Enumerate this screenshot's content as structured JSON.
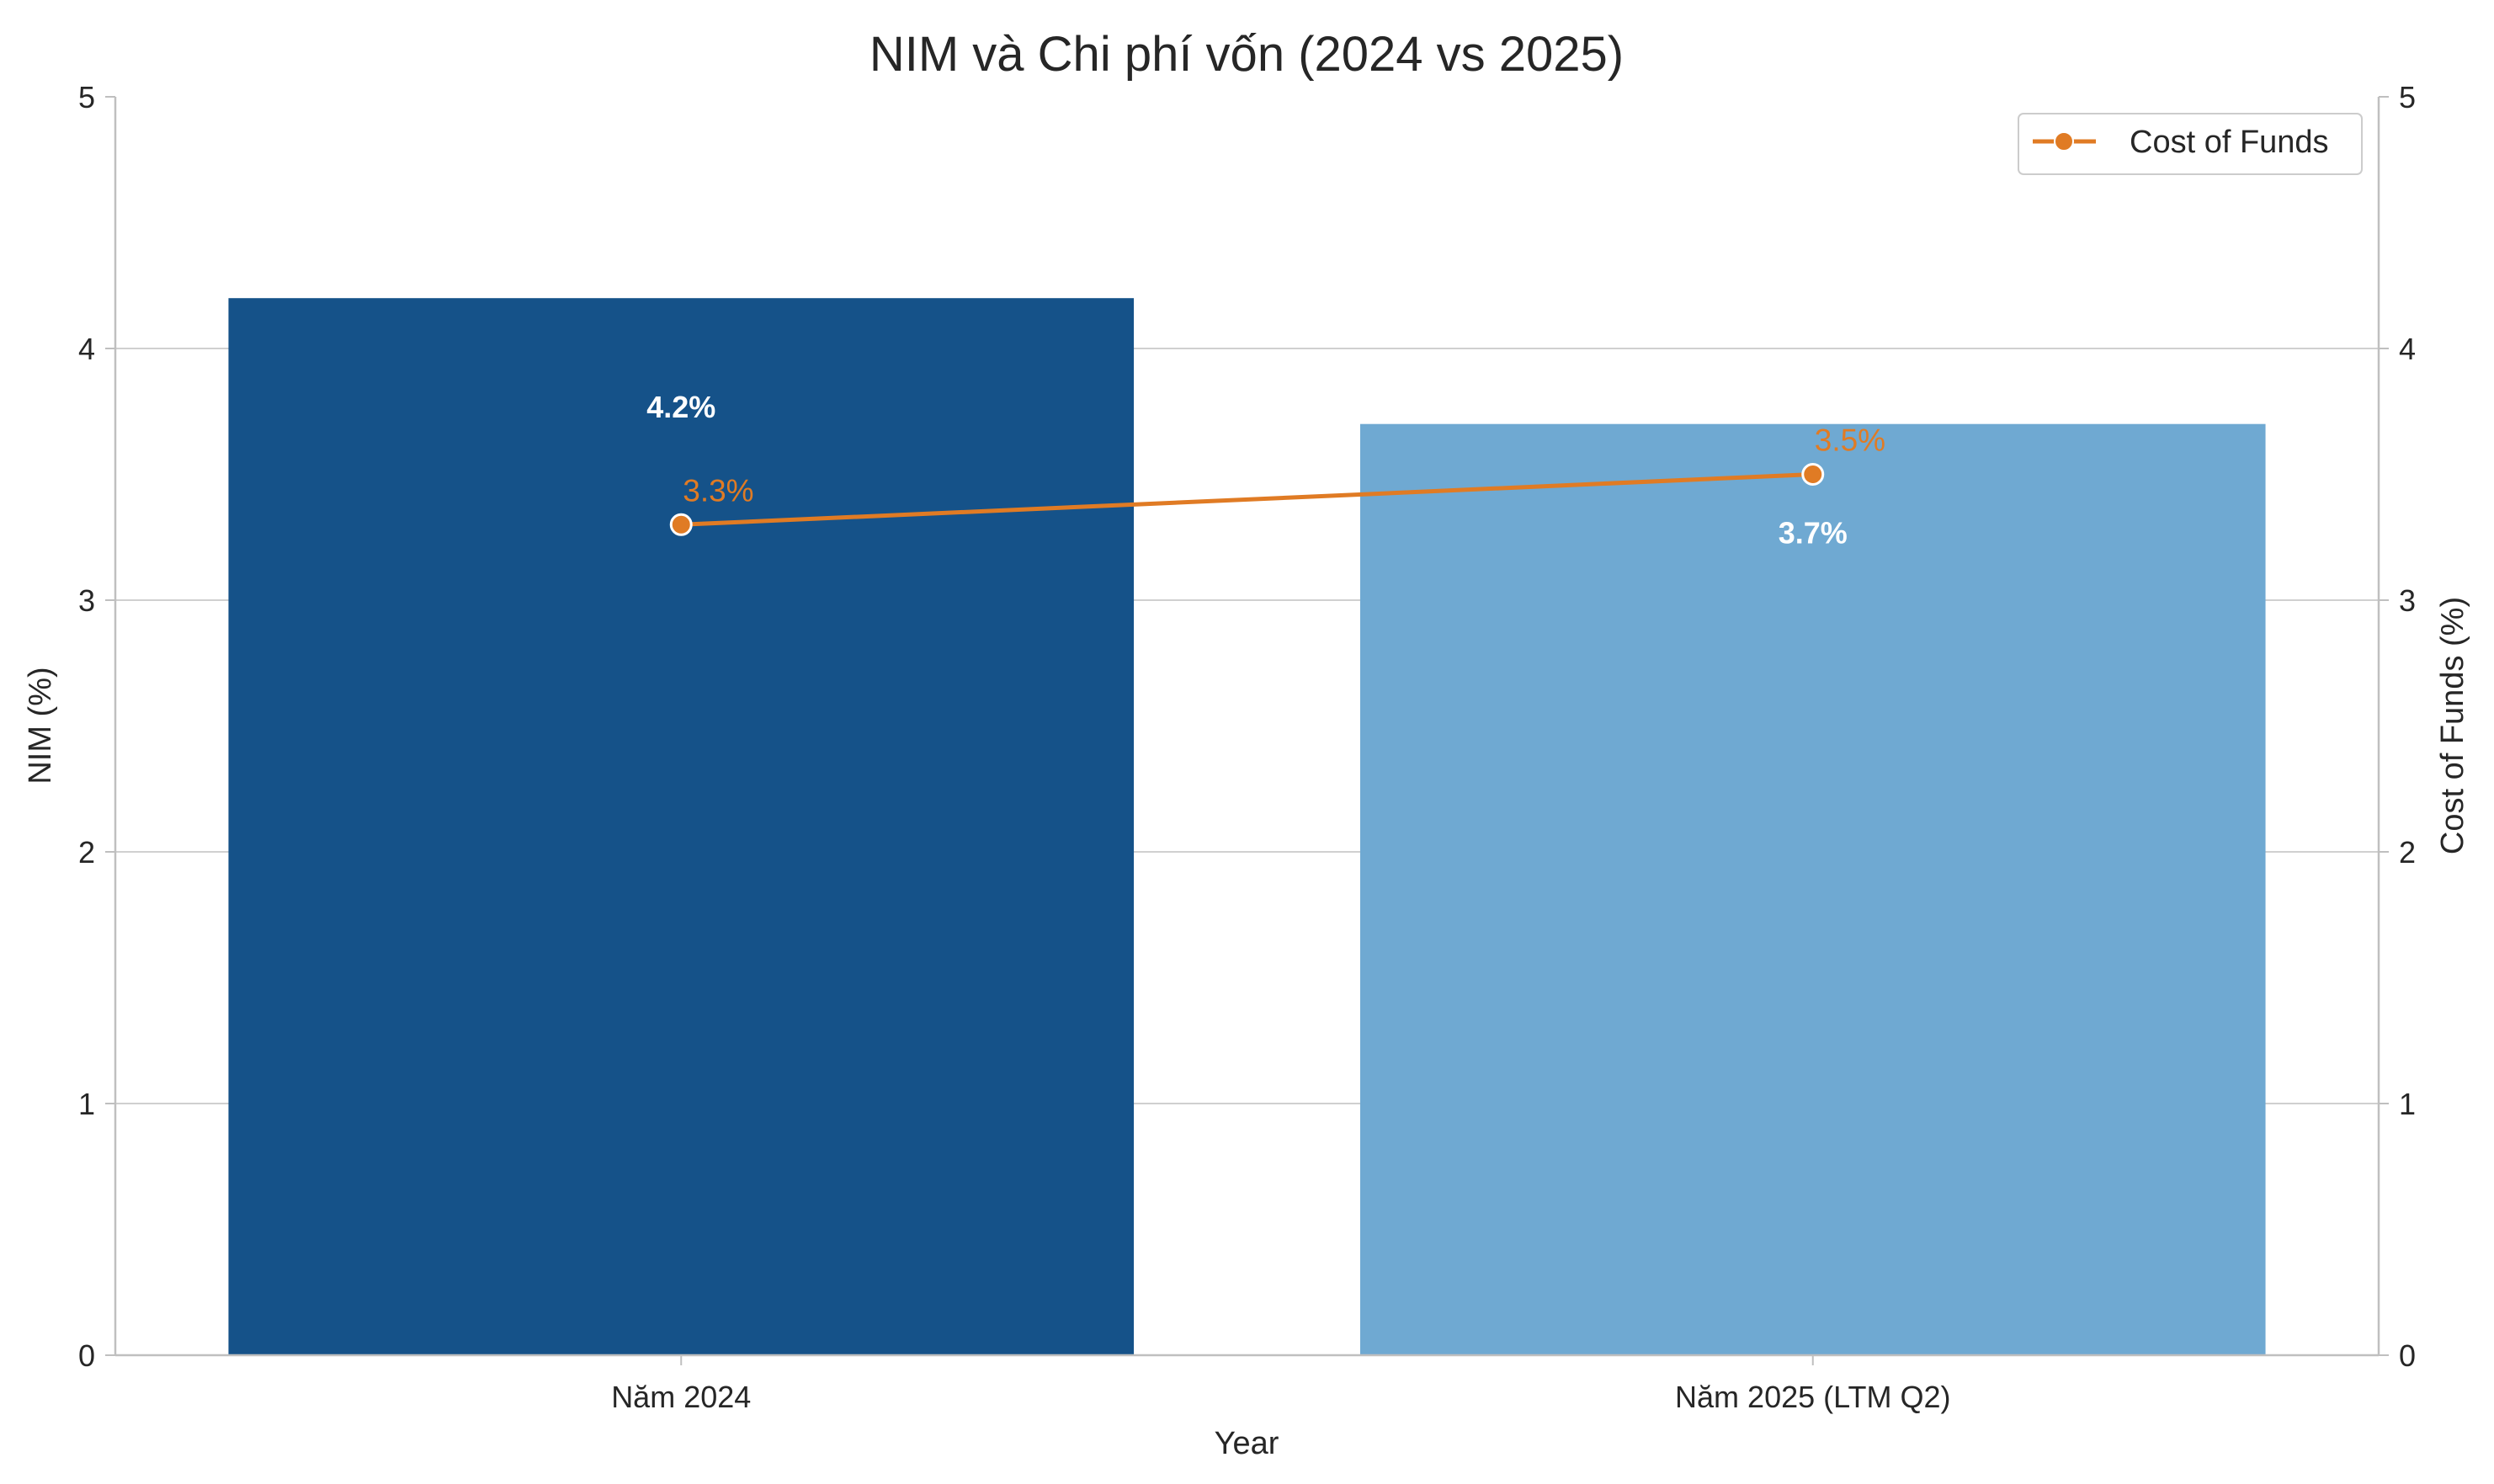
{
  "chart_data": {
    "type": "bar",
    "title": "NIM và Chi phí vốn (2024 vs 2025)",
    "xlabel": "Year",
    "ylabel": "NIM (%)",
    "ylabel_right": "Cost of Funds (%)",
    "categories": [
      "Năm 2024",
      "Năm 2025 (LTM Q2)"
    ],
    "ylim": [
      0,
      5
    ],
    "ylim_right": [
      0,
      5
    ],
    "yticks": [
      "0",
      "1",
      "2",
      "3",
      "4",
      "5"
    ],
    "grid": true,
    "legend": {
      "placement": "top-right",
      "entries": [
        "Cost of Funds"
      ]
    },
    "series": [
      {
        "name": "NIM",
        "kind": "bar",
        "axis": "left",
        "values": [
          4.2,
          3.7
        ],
        "labels": [
          "4.2%",
          "3.7%"
        ],
        "colors": [
          "#155289",
          "#6fa9d2"
        ]
      },
      {
        "name": "Cost of Funds",
        "kind": "line",
        "axis": "right",
        "values": [
          3.3,
          3.5
        ],
        "labels": [
          "3.3%",
          "3.5%"
        ],
        "color": "#e07b24"
      }
    ]
  }
}
